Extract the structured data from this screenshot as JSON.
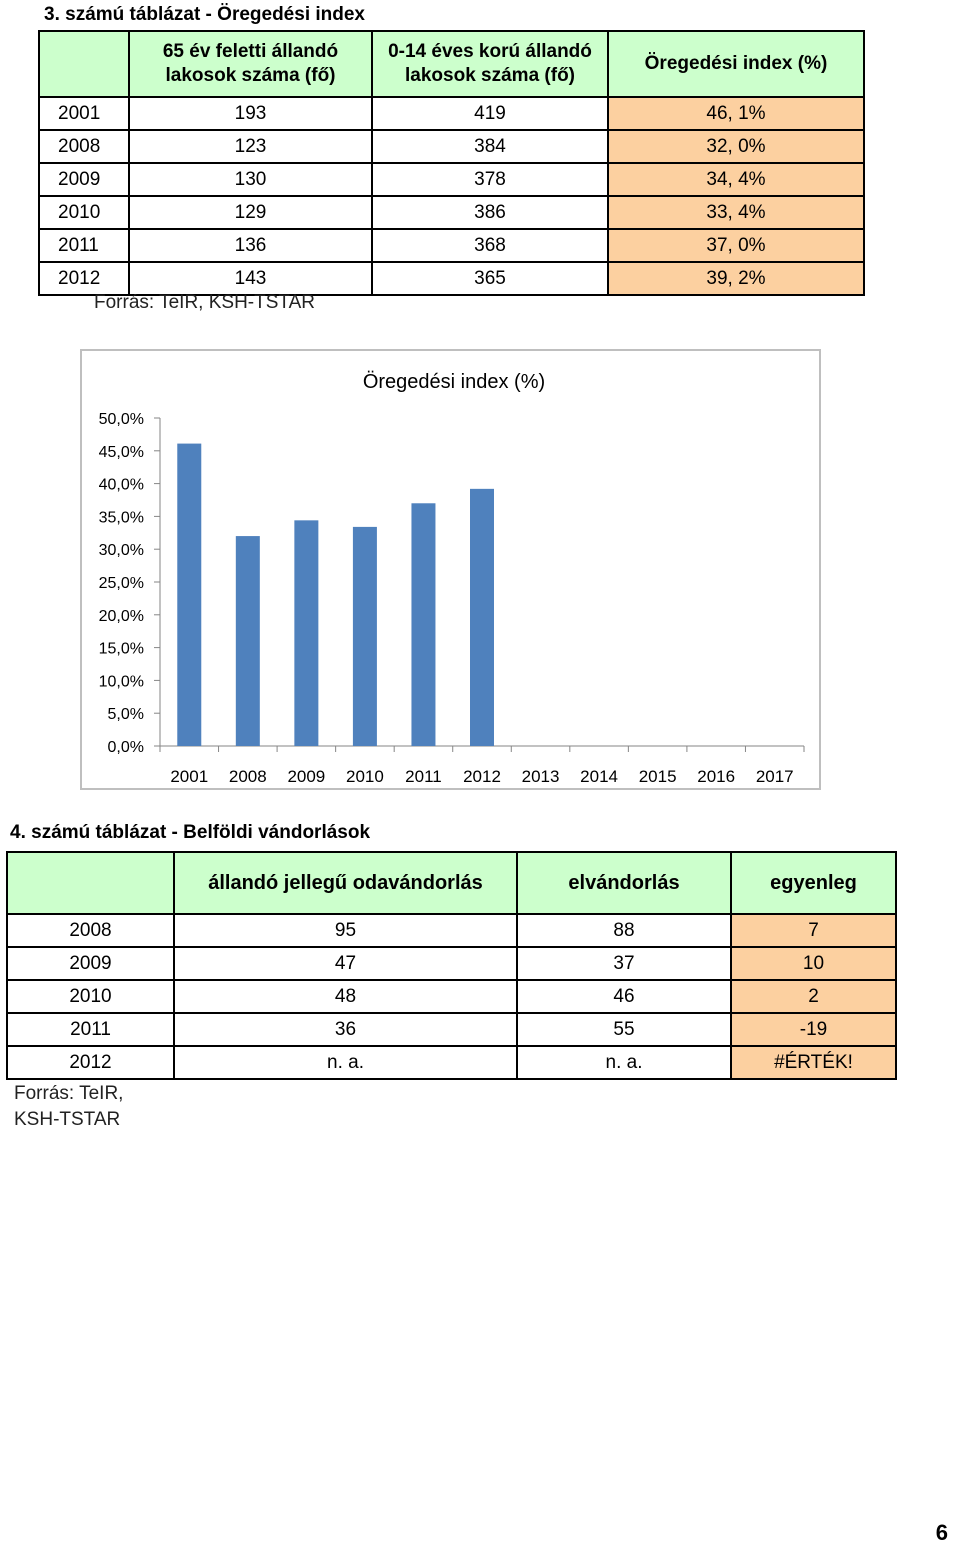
{
  "table1": {
    "title": "3. számú táblázat - Öregedési index",
    "headers": [
      "65 év feletti állandó lakosok száma (fő)",
      "0-14 éves korú állandó lakosok száma (fő)",
      "Öregedési index (%)"
    ],
    "rows": [
      {
        "year": "2001",
        "old": "193",
        "young": "419",
        "index": "46, 1%"
      },
      {
        "year": "2008",
        "old": "123",
        "young": "384",
        "index": "32, 0%"
      },
      {
        "year": "2009",
        "old": "130",
        "young": "378",
        "index": "34, 4%"
      },
      {
        "year": "2010",
        "old": "129",
        "young": "386",
        "index": "33, 4%"
      },
      {
        "year": "2011",
        "old": "136",
        "young": "368",
        "index": "37, 0%"
      },
      {
        "year": "2012",
        "old": "143",
        "young": "365",
        "index": "39, 2%"
      }
    ],
    "source": "Forrás: TeIR, KSH-TSTAR"
  },
  "chart_data": {
    "type": "bar",
    "title": "Öregedési index (%)",
    "categories": [
      "2001",
      "2008",
      "2009",
      "2010",
      "2011",
      "2012",
      "2013",
      "2014",
      "2015",
      "2016",
      "2017"
    ],
    "values": [
      46.1,
      32.0,
      34.4,
      33.4,
      37.0,
      39.2,
      null,
      null,
      null,
      null,
      null
    ],
    "ylim": [
      0,
      50
    ],
    "yticks": [
      "0,0%",
      "5,0%",
      "10,0%",
      "15,0%",
      "20,0%",
      "25,0%",
      "30,0%",
      "35,0%",
      "40,0%",
      "45,0%",
      "50,0%"
    ],
    "xlabel": "",
    "ylabel": "",
    "grid": false,
    "bar_color": "#4f81bd"
  },
  "table2": {
    "title": "4. számú táblázat - Belföldi vándorlások",
    "headers": [
      "",
      "állandó jellegű odavándorlás",
      "elvándorlás",
      "egyenleg"
    ],
    "rows": [
      {
        "year": "2008",
        "in": "95",
        "out": "88",
        "balance": "7"
      },
      {
        "year": "2009",
        "in": "47",
        "out": "37",
        "balance": "10"
      },
      {
        "year": "2010",
        "in": "48",
        "out": "46",
        "balance": "2"
      },
      {
        "year": "2011",
        "in": "36",
        "out": "55",
        "balance": "-19"
      },
      {
        "year": "2012",
        "in": "n. a.",
        "out": "n. a.",
        "balance": "#ÉRTÉK!"
      }
    ],
    "source_line1": "Forrás: TeIR,",
    "source_line2": "KSH-TSTAR"
  },
  "page_number": "6"
}
